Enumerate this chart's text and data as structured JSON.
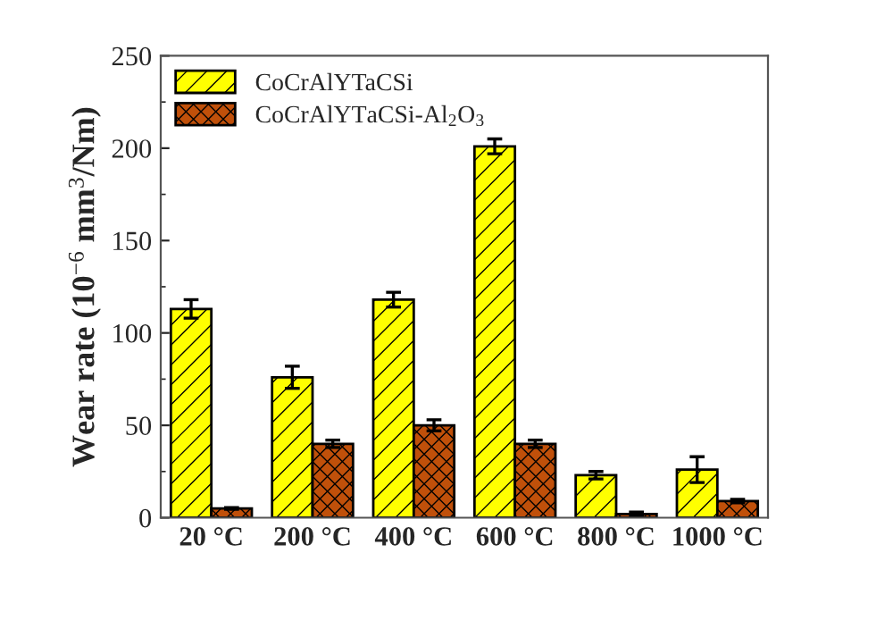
{
  "chart_data": {
    "type": "bar",
    "ylabel": "Wear rate (10$^{−6}$ mm$^{3}$/Nm)",
    "categories": [
      "20 °C",
      "200 °C",
      "400 °C",
      "600 °C",
      "800 °C",
      "1000 °C"
    ],
    "series": [
      {
        "name": "CoCrAlYTaCSi",
        "color": "#ffff00",
        "values": [
          113,
          76,
          118,
          201,
          23,
          26
        ],
        "errors": [
          5,
          6,
          4,
          4,
          2,
          7
        ]
      },
      {
        "name": "CoCrAlYTaCSi-Al$_{2}$O$_{3}$",
        "color": "#c0500a",
        "values": [
          5,
          40,
          50,
          40,
          2,
          9
        ],
        "errors": [
          0.5,
          2,
          3,
          2,
          1,
          1
        ]
      }
    ],
    "ylim": [
      0,
      250
    ],
    "yticks": [
      0,
      50,
      100,
      150,
      200,
      250
    ],
    "grid": false,
    "legend": "top left"
  }
}
